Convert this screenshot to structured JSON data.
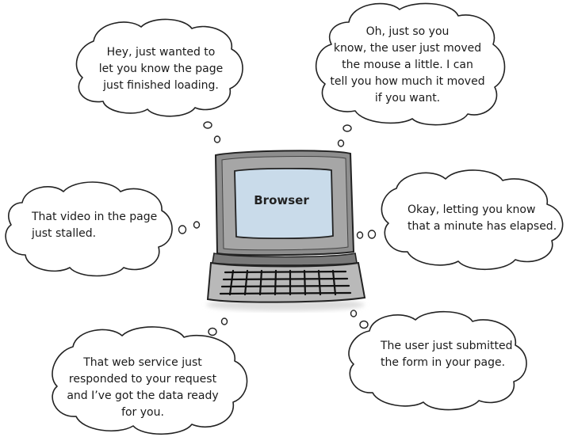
{
  "laptop": {
    "screen_label": "Browser"
  },
  "bubbles": {
    "page_loaded": {
      "lines": [
        "Hey, just wanted to",
        "let you know the page",
        "just finished loading."
      ]
    },
    "mouse_moved": {
      "lines": [
        "Oh, just so you",
        "know, the user just moved",
        "the mouse a little. I can",
        "tell you how much it moved",
        "if you want."
      ]
    },
    "video_stalled": {
      "lines": [
        "That video in the page",
        "just stalled."
      ]
    },
    "minute_elapsed": {
      "lines": [
        "Okay, letting you know",
        "that a minute has elapsed."
      ]
    },
    "web_service": {
      "lines": [
        "That web service just",
        "responded to your request",
        "and I’ve got the data ready",
        "for you."
      ]
    },
    "form_submitted": {
      "lines": [
        "The user just submitted",
        "the form in your page."
      ]
    }
  }
}
